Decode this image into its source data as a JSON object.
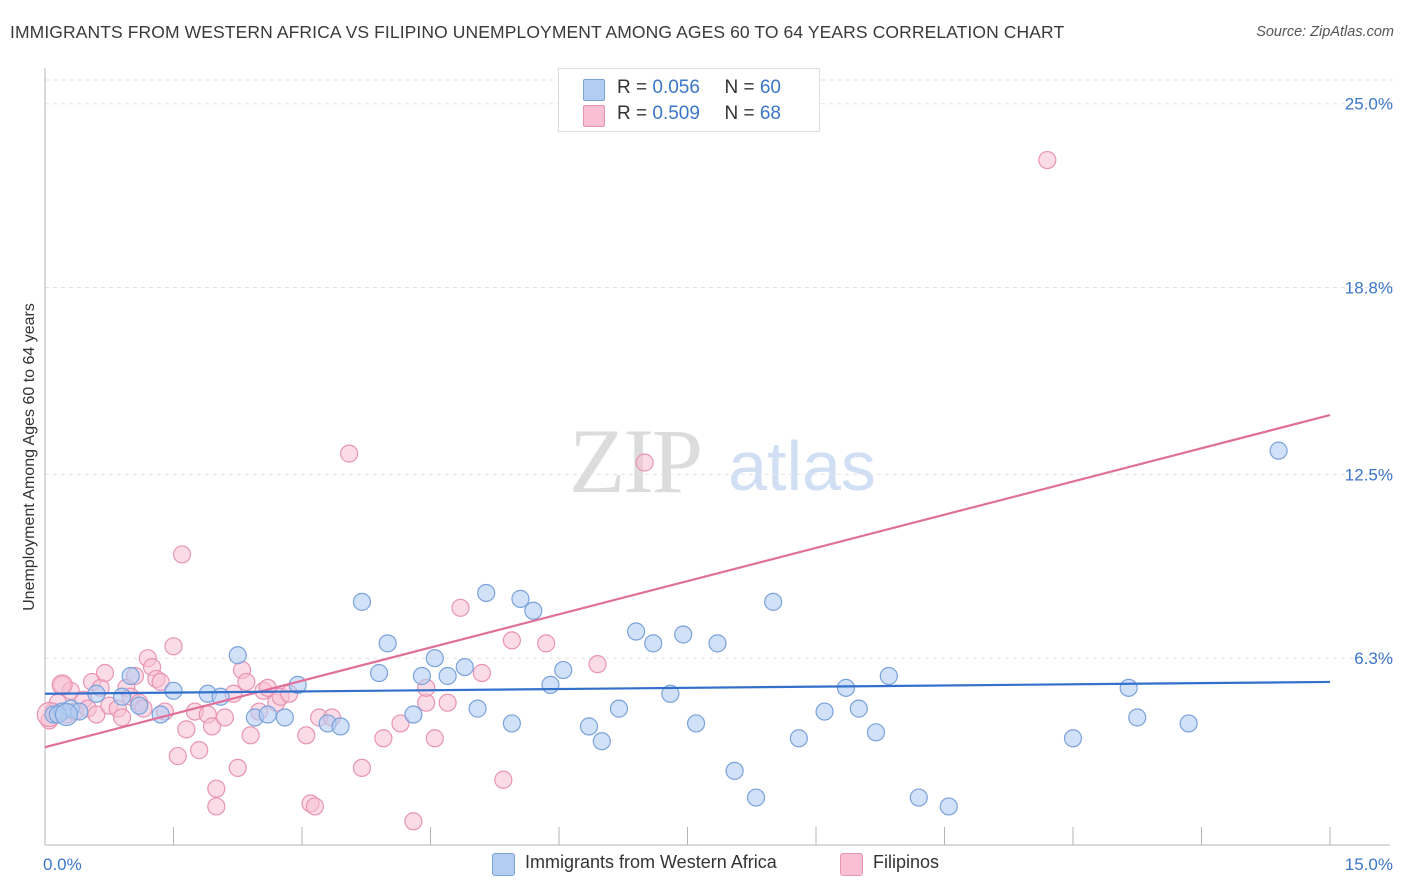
{
  "title": "IMMIGRANTS FROM WESTERN AFRICA VS FILIPINO UNEMPLOYMENT AMONG AGES 60 TO 64 YEARS CORRELATION CHART",
  "source": "Source: ZipAtlas.com",
  "watermark": {
    "zip": "ZIP",
    "atlas": "atlas"
  },
  "legend_top": [
    {
      "r_label": "R = ",
      "r_value": "0.056",
      "n_label": "N = ",
      "n_value": "60"
    },
    {
      "r_label": "R = ",
      "r_value": "0.509",
      "n_label": "N = ",
      "n_value": "68"
    }
  ],
  "legend_bottom": [
    {
      "label": "Immigrants from Western Africa"
    },
    {
      "label": "Filipinos"
    }
  ],
  "colors": {
    "blue_fill": "#b3cdf2",
    "blue_stroke": "#7aa2dc",
    "blue_line": "#3370cc",
    "pink_fill": "#f8c0d2",
    "pink_stroke": "#e894b2",
    "pink_line": "#e0709a",
    "tick_text": "#3b76c9",
    "grid": "#e3e3e3"
  },
  "chart_data": {
    "type": "scatter",
    "title": "IMMIGRANTS FROM WESTERN AFRICA VS FILIPINO UNEMPLOYMENT AMONG AGES 60 TO 64 YEARS CORRELATION CHART",
    "xlabel": "",
    "ylabel": "Unemployment Among Ages 60 to 64 years",
    "xlim": [
      0,
      15
    ],
    "ylim": [
      0,
      25.8
    ],
    "x_tick_labels": [
      "0.0%",
      "15.0%"
    ],
    "y_ticks": [
      6.3,
      12.5,
      18.8,
      25.0
    ],
    "y_tick_labels": [
      "6.3%",
      "12.5%",
      "18.8%",
      "25.0%"
    ],
    "grid": true,
    "legend_position": "top-center",
    "series": [
      {
        "name": "Immigrants from Western Africa",
        "r": 0.056,
        "n": 60,
        "trend": {
          "x": [
            0,
            15
          ],
          "y": [
            5.1,
            5.5
          ]
        },
        "points": [
          [
            0.1,
            4.4
          ],
          [
            0.2,
            4.5
          ],
          [
            0.3,
            4.6
          ],
          [
            0.4,
            4.5
          ],
          [
            0.6,
            5.1
          ],
          [
            0.9,
            5.0
          ],
          [
            1.0,
            5.7
          ],
          [
            1.35,
            4.4
          ],
          [
            1.5,
            5.2
          ],
          [
            1.9,
            5.1
          ],
          [
            2.05,
            5.0
          ],
          [
            2.25,
            6.4
          ],
          [
            2.45,
            4.3
          ],
          [
            2.6,
            4.4
          ],
          [
            2.8,
            4.3
          ],
          [
            2.95,
            5.4
          ],
          [
            3.3,
            4.1
          ],
          [
            3.45,
            4.0
          ],
          [
            3.7,
            8.2
          ],
          [
            3.9,
            5.8
          ],
          [
            4.0,
            6.8
          ],
          [
            4.3,
            4.4
          ],
          [
            4.4,
            5.7
          ],
          [
            4.55,
            6.3
          ],
          [
            4.7,
            5.7
          ],
          [
            4.9,
            6.0
          ],
          [
            5.05,
            4.6
          ],
          [
            5.15,
            8.5
          ],
          [
            5.45,
            4.1
          ],
          [
            5.55,
            8.3
          ],
          [
            5.7,
            7.9
          ],
          [
            5.9,
            5.4
          ],
          [
            6.05,
            5.9
          ],
          [
            6.35,
            4.0
          ],
          [
            6.5,
            3.5
          ],
          [
            6.7,
            4.6
          ],
          [
            6.9,
            7.2
          ],
          [
            7.1,
            6.8
          ],
          [
            7.3,
            5.1
          ],
          [
            7.45,
            7.1
          ],
          [
            7.6,
            4.1
          ],
          [
            7.85,
            6.8
          ],
          [
            8.05,
            2.5
          ],
          [
            8.3,
            1.6
          ],
          [
            8.5,
            8.2
          ],
          [
            8.8,
            3.6
          ],
          [
            9.1,
            4.5
          ],
          [
            9.35,
            5.3
          ],
          [
            9.5,
            4.6
          ],
          [
            9.7,
            3.8
          ],
          [
            9.85,
            5.7
          ],
          [
            10.2,
            1.6
          ],
          [
            10.55,
            1.3
          ],
          [
            12.0,
            3.6
          ],
          [
            12.65,
            5.3
          ],
          [
            12.75,
            4.3
          ],
          [
            13.35,
            4.1
          ],
          [
            14.4,
            13.3
          ],
          [
            0.15,
            4.4
          ],
          [
            1.1,
            4.7
          ]
        ]
      },
      {
        "name": "Filipinos",
        "r": 0.509,
        "n": 68,
        "trend": {
          "x": [
            0,
            15
          ],
          "y": [
            3.3,
            14.5
          ]
        },
        "points": [
          [
            0.05,
            4.2
          ],
          [
            0.1,
            4.5
          ],
          [
            0.15,
            4.8
          ],
          [
            0.2,
            5.4
          ],
          [
            0.25,
            4.4
          ],
          [
            0.3,
            5.2
          ],
          [
            0.35,
            4.5
          ],
          [
            0.45,
            4.9
          ],
          [
            0.5,
            4.6
          ],
          [
            0.55,
            5.5
          ],
          [
            0.6,
            4.4
          ],
          [
            0.65,
            5.3
          ],
          [
            0.7,
            5.8
          ],
          [
            0.75,
            4.7
          ],
          [
            0.85,
            4.6
          ],
          [
            0.9,
            4.3
          ],
          [
            0.95,
            5.3
          ],
          [
            1.0,
            5.0
          ],
          [
            1.05,
            5.7
          ],
          [
            1.1,
            4.8
          ],
          [
            1.15,
            4.6
          ],
          [
            1.2,
            6.3
          ],
          [
            1.25,
            6.0
          ],
          [
            1.3,
            5.6
          ],
          [
            1.35,
            5.5
          ],
          [
            1.4,
            4.5
          ],
          [
            1.5,
            6.7
          ],
          [
            1.55,
            3.0
          ],
          [
            1.6,
            9.8
          ],
          [
            1.65,
            3.9
          ],
          [
            1.75,
            4.5
          ],
          [
            1.8,
            3.2
          ],
          [
            1.9,
            4.4
          ],
          [
            1.95,
            4.0
          ],
          [
            2.0,
            1.9
          ],
          [
            2.0,
            1.3
          ],
          [
            2.1,
            4.3
          ],
          [
            2.2,
            5.1
          ],
          [
            2.25,
            2.6
          ],
          [
            2.3,
            5.9
          ],
          [
            2.35,
            5.5
          ],
          [
            2.4,
            3.7
          ],
          [
            2.5,
            4.5
          ],
          [
            2.55,
            5.2
          ],
          [
            2.6,
            5.3
          ],
          [
            2.7,
            4.8
          ],
          [
            2.75,
            5.0
          ],
          [
            2.85,
            5.1
          ],
          [
            3.05,
            3.7
          ],
          [
            3.1,
            1.4
          ],
          [
            3.15,
            1.3
          ],
          [
            3.2,
            4.3
          ],
          [
            3.35,
            4.3
          ],
          [
            3.55,
            13.2
          ],
          [
            3.7,
            2.6
          ],
          [
            3.95,
            3.6
          ],
          [
            4.15,
            4.1
          ],
          [
            4.3,
            0.8
          ],
          [
            4.45,
            4.8
          ],
          [
            4.45,
            5.3
          ],
          [
            4.55,
            3.6
          ],
          [
            4.7,
            4.8
          ],
          [
            4.85,
            8.0
          ],
          [
            5.1,
            5.8
          ],
          [
            5.35,
            2.2
          ],
          [
            5.45,
            6.9
          ],
          [
            5.85,
            6.8
          ],
          [
            6.45,
            6.1
          ]
        ],
        "outliers": [
          [
            7.0,
            12.9
          ],
          [
            11.7,
            23.1
          ]
        ]
      }
    ]
  }
}
